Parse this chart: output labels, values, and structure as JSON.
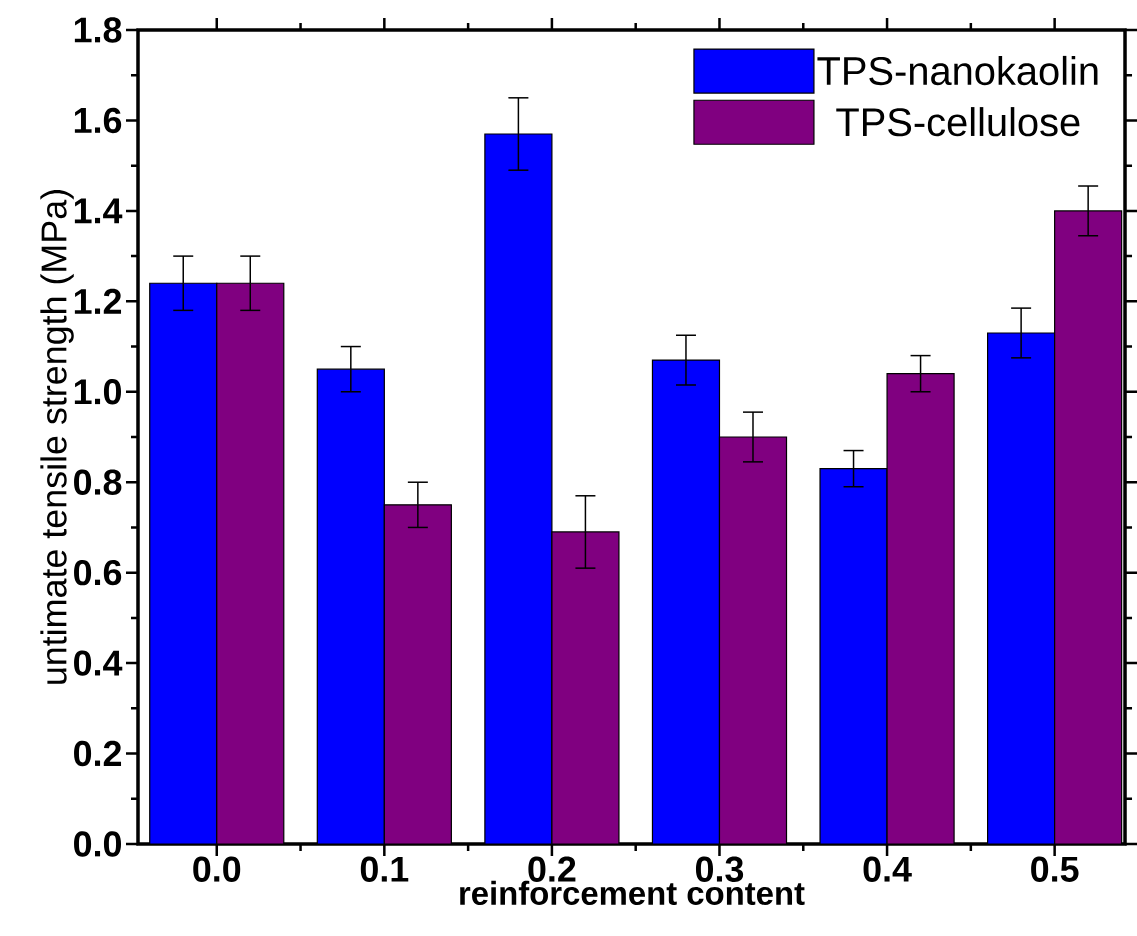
{
  "chart_data": {
    "type": "bar",
    "xlabel": "reinforcement content",
    "ylabel": "untimate tensile strength (MPa)",
    "categories": [
      "0.0",
      "0.1",
      "0.2",
      "0.3",
      "0.4",
      "0.5"
    ],
    "series": [
      {
        "name": "TPS-nanokaolin",
        "color": "#0000ff",
        "values": [
          1.24,
          1.05,
          1.57,
          1.07,
          0.83,
          1.13
        ],
        "errors": [
          0.06,
          0.05,
          0.08,
          0.055,
          0.04,
          0.055
        ]
      },
      {
        "name": "TPS-cellulose",
        "color": "#800080",
        "values": [
          1.24,
          0.75,
          0.69,
          0.9,
          1.04,
          1.4
        ],
        "errors": [
          0.06,
          0.05,
          0.08,
          0.055,
          0.04,
          0.055
        ]
      }
    ],
    "ylim": [
      0,
      1.8
    ],
    "yticks": [
      {
        "value": 0,
        "label": "0.0"
      },
      0.2,
      0.4,
      0.6,
      0.8,
      {
        "value": 1.0,
        "label": "1.0"
      },
      1.2,
      1.4,
      1.6,
      1.8
    ],
    "legend": "top right",
    "grid": false
  }
}
